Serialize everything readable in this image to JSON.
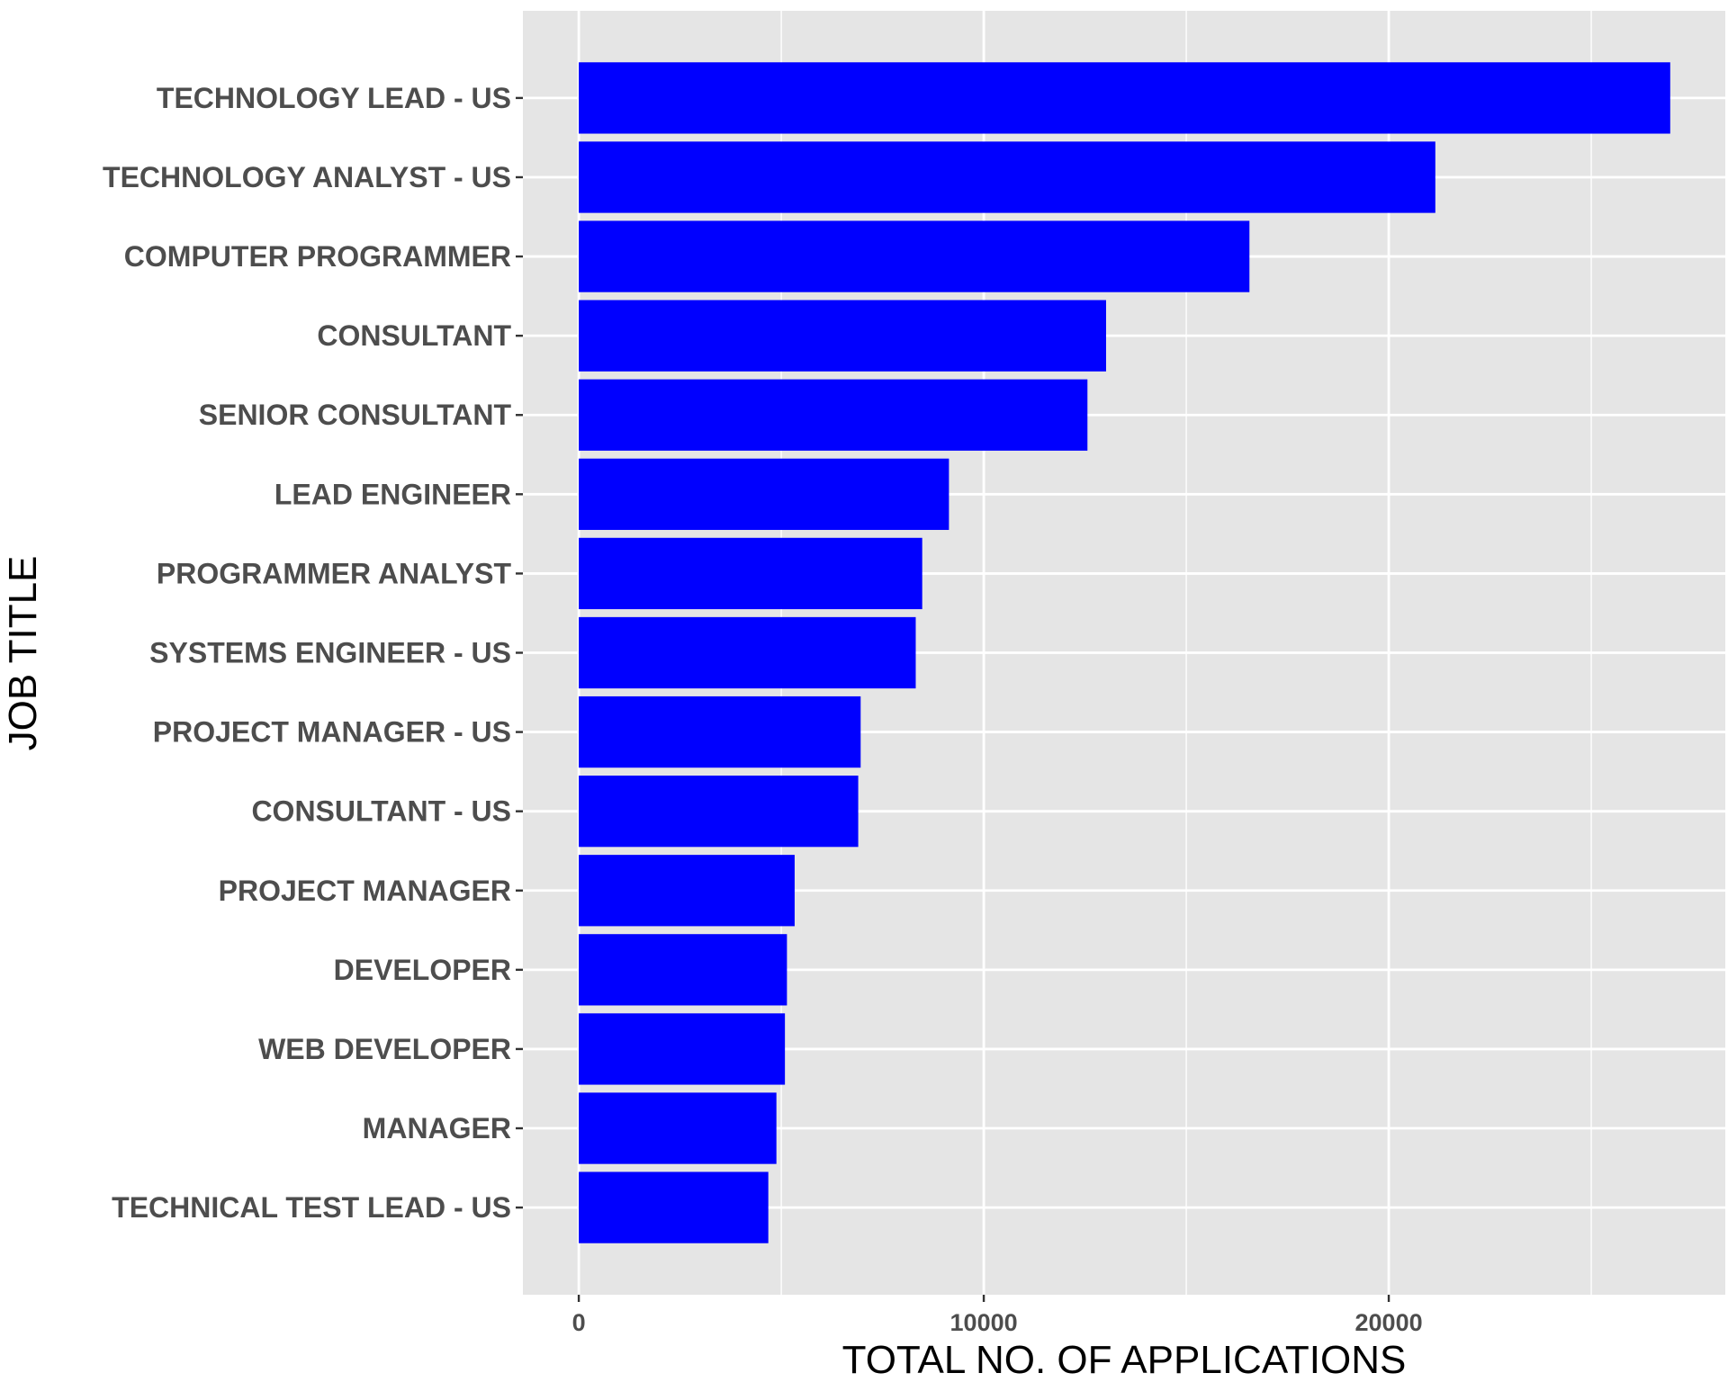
{
  "chart_data": {
    "type": "bar",
    "orientation": "horizontal",
    "xlabel": "TOTAL NO. OF APPLICATIONS",
    "ylabel": "JOB TITLE",
    "categories": [
      "TECHNOLOGY LEAD - US",
      "TECHNOLOGY ANALYST - US",
      "COMPUTER PROGRAMMER",
      "CONSULTANT",
      "SENIOR CONSULTANT",
      "LEAD ENGINEER",
      "PROGRAMMER ANALYST",
      "SYSTEMS ENGINEER - US",
      "PROJECT MANAGER - US",
      "CONSULTANT - US",
      "PROJECT MANAGER",
      "DEVELOPER",
      "WEB DEVELOPER",
      "MANAGER",
      "TECHNICAL TEST LEAD - US"
    ],
    "values": [
      26950,
      21150,
      16560,
      13020,
      12560,
      9140,
      8480,
      8320,
      6960,
      6900,
      5330,
      5140,
      5090,
      4880,
      4680
    ],
    "xlim": [
      -1380,
      28310
    ],
    "xticks": [
      0,
      10000,
      20000
    ],
    "x_tick_labels": [
      "0",
      "10000",
      "20000"
    ],
    "grid": true,
    "colors": {
      "bar": "#0000ff",
      "panel_background": "#e5e5e5",
      "grid": "#ffffff",
      "tick_label": "#4d4d4d"
    }
  }
}
